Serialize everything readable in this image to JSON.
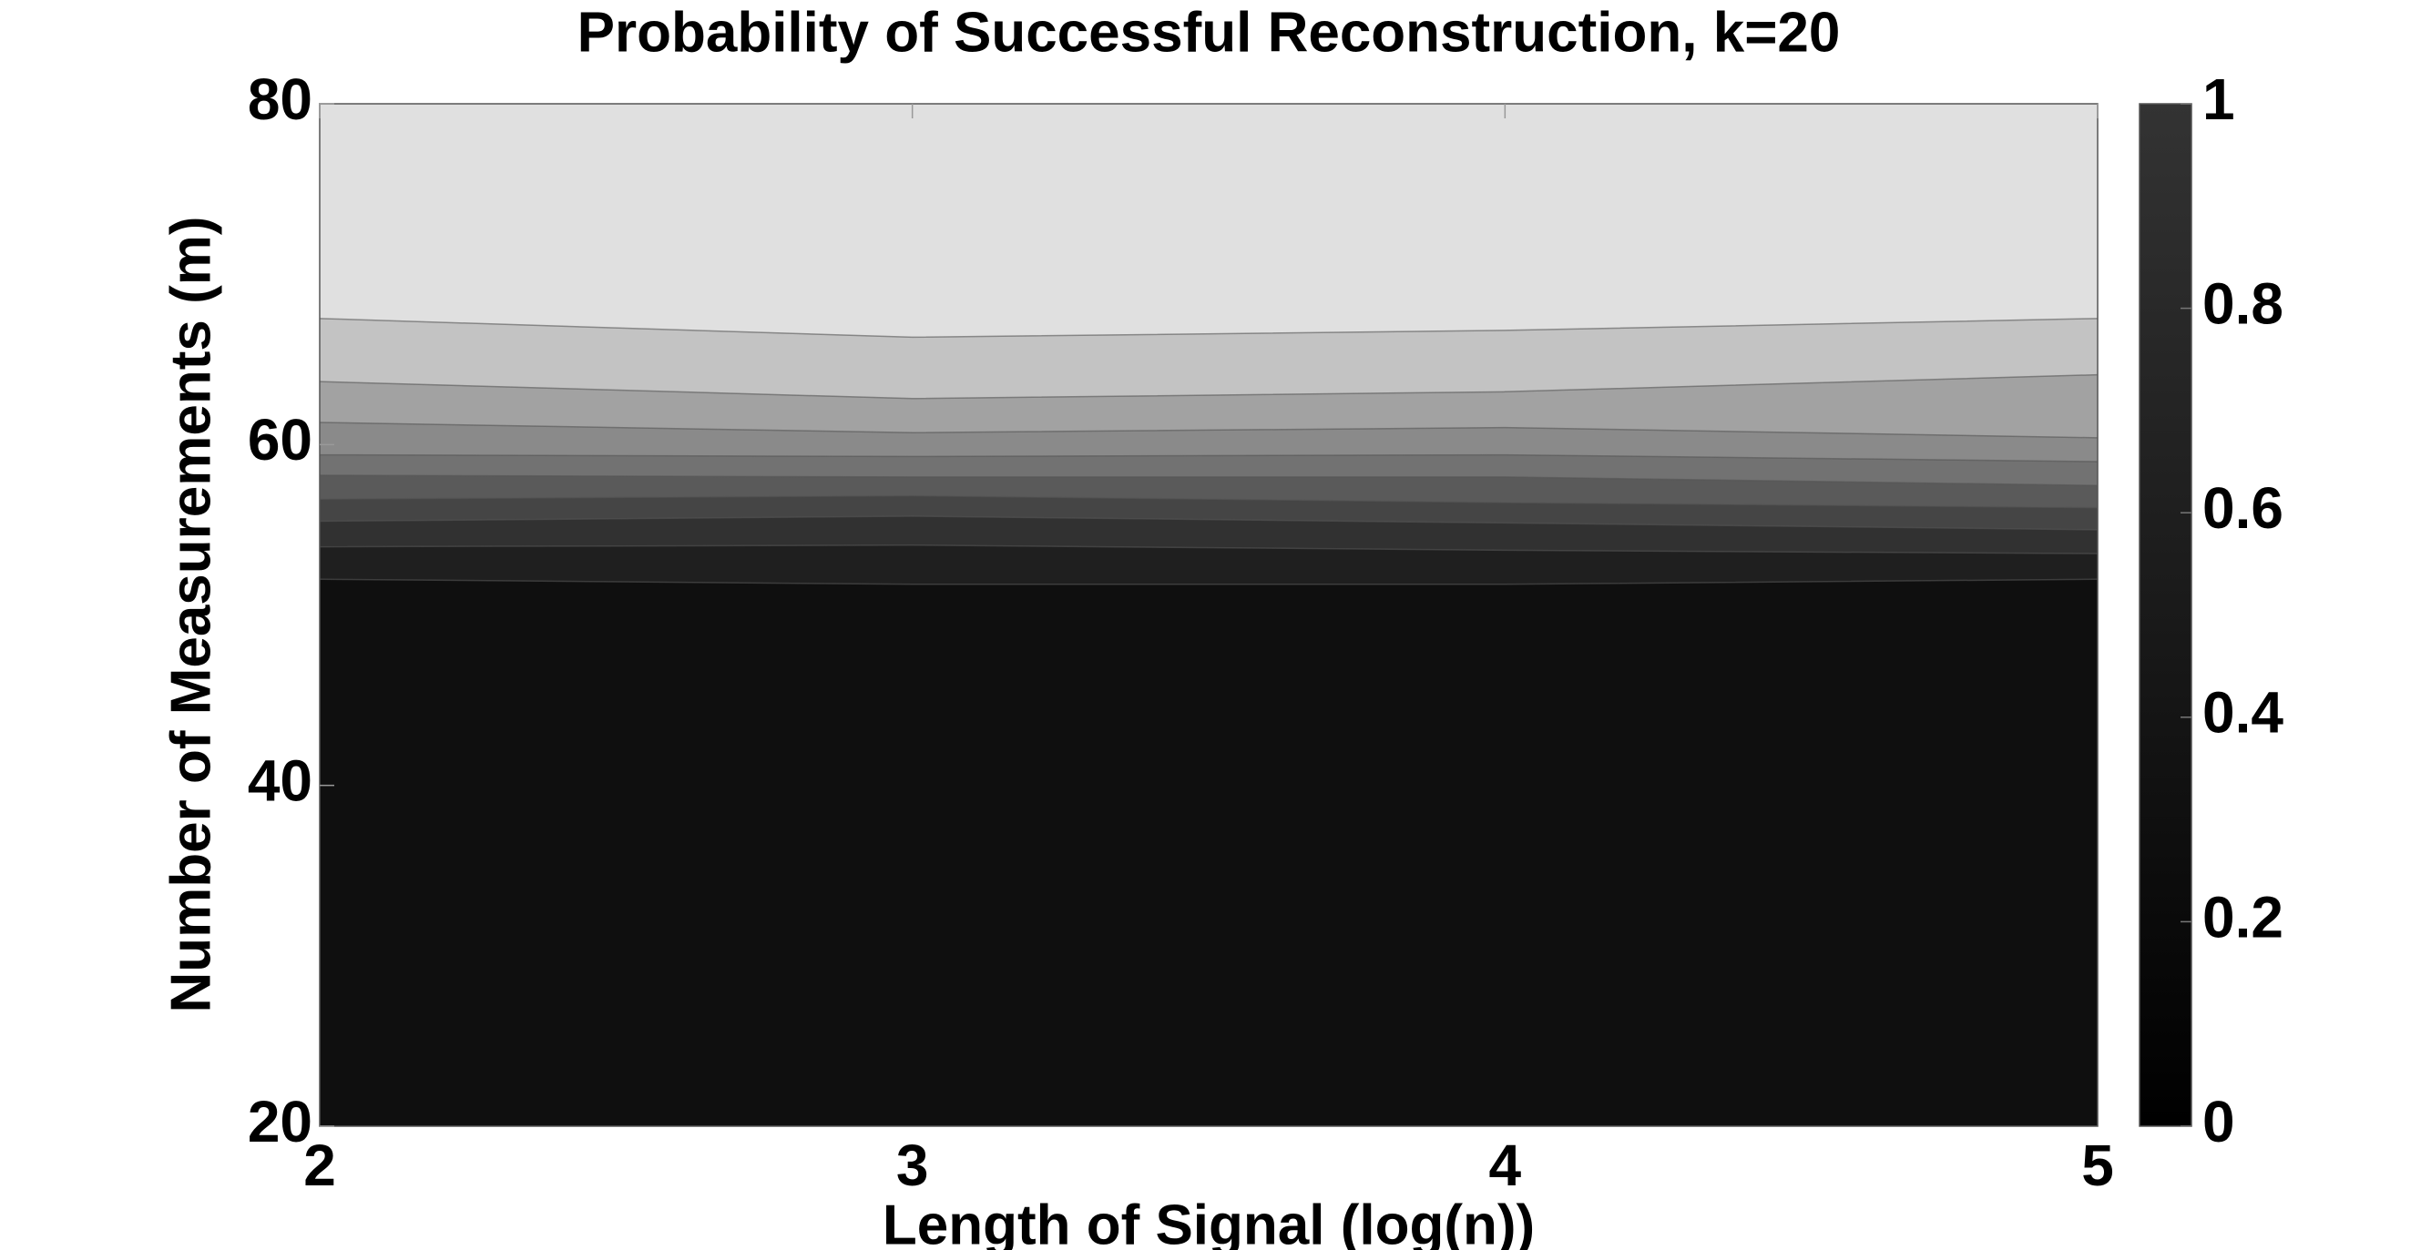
{
  "chart_data": {
    "type": "contourf",
    "title": "Probability of Successful Reconstruction, k=20",
    "xlabel": "Length of Signal (log(n))",
    "ylabel": "Number of Measurements (m)",
    "x": [
      2,
      3,
      4,
      5
    ],
    "xlim": [
      2,
      5
    ],
    "xticks": [
      2,
      3,
      4,
      5
    ],
    "ylim": [
      20,
      80
    ],
    "yticks": [
      20,
      40,
      60,
      80
    ],
    "contours": [
      {
        "level": 0.9,
        "values": [
          67.4,
          66.3,
          66.7,
          67.4
        ]
      },
      {
        "level": 0.8,
        "values": [
          63.7,
          62.7,
          63.1,
          64.1
        ]
      },
      {
        "level": 0.7,
        "values": [
          61.3,
          60.7,
          61.0,
          60.4
        ]
      },
      {
        "level": 0.6,
        "values": [
          59.4,
          59.3,
          59.4,
          59.0
        ]
      },
      {
        "level": 0.5,
        "values": [
          58.2,
          58.1,
          58.1,
          57.6
        ]
      },
      {
        "level": 0.4,
        "values": [
          56.8,
          57.0,
          56.6,
          56.3
        ]
      },
      {
        "level": 0.3,
        "values": [
          55.5,
          55.8,
          55.4,
          55.0
        ]
      },
      {
        "level": 0.2,
        "values": [
          54.0,
          54.1,
          53.8,
          53.6
        ]
      },
      {
        "level": 0.1,
        "values": [
          52.1,
          51.8,
          51.8,
          52.1
        ]
      }
    ],
    "band_colors": [
      "#e0e0e0",
      "#c3c3c3",
      "#a2a2a2",
      "#8a8a8a",
      "#727272",
      "#5a5a5a",
      "#454545",
      "#313131",
      "#1f1f1f",
      "#0f0f0f",
      "#000000"
    ],
    "colorbar": {
      "clim": [
        0,
        1
      ],
      "ticks": [
        0,
        0.2,
        0.4,
        0.6,
        0.8,
        1
      ],
      "colors": [
        "#000000",
        "#333333"
      ]
    }
  }
}
